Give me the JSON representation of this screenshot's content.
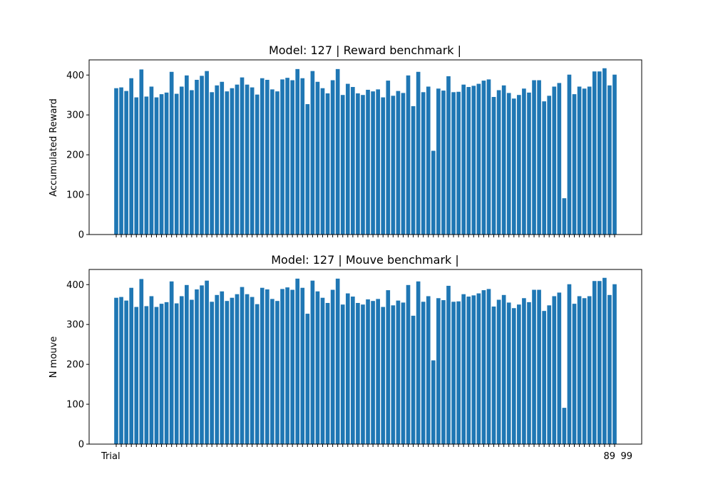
{
  "chart_data": [
    {
      "type": "bar",
      "title": "Model: 127 | Reward benchmark |",
      "xlabel": "",
      "ylabel": "Accumulated Reward",
      "ylim": [
        0,
        438
      ],
      "yticks": [
        0,
        100,
        200,
        300,
        400
      ],
      "grid": false,
      "color": "#1f77b4",
      "values": [
        367,
        369,
        360,
        392,
        344,
        414,
        346,
        371,
        344,
        352,
        356,
        408,
        353,
        371,
        399,
        362,
        388,
        398,
        410,
        357,
        374,
        383,
        359,
        367,
        376,
        394,
        376,
        369,
        351,
        392,
        388,
        364,
        359,
        389,
        393,
        387,
        415,
        392,
        327,
        410,
        383,
        367,
        354,
        387,
        415,
        350,
        378,
        370,
        354,
        350,
        363,
        359,
        364,
        344,
        386,
        348,
        360,
        355,
        399,
        322,
        408,
        357,
        371,
        210,
        366,
        361,
        397,
        357,
        358,
        376,
        370,
        373,
        378,
        386,
        389,
        345,
        362,
        374,
        355,
        341,
        350,
        366,
        356,
        387,
        387,
        334,
        348,
        371,
        380,
        91,
        401,
        352,
        371,
        366,
        371,
        409,
        409,
        417,
        374,
        401
      ]
    },
    {
      "type": "bar",
      "title": "Model: 127 | Mouve benchmark |",
      "xlabel": "",
      "ylabel": "N mouve",
      "ylim": [
        0,
        438
      ],
      "yticks": [
        0,
        100,
        200,
        300,
        400
      ],
      "grid": false,
      "color": "#1f77b4",
      "x_tick_labels_shown": [
        "Trial",
        "89",
        "99"
      ],
      "values": [
        367,
        369,
        360,
        392,
        344,
        414,
        346,
        371,
        344,
        352,
        356,
        408,
        353,
        371,
        399,
        362,
        388,
        398,
        410,
        357,
        374,
        383,
        359,
        367,
        376,
        394,
        376,
        369,
        351,
        392,
        388,
        364,
        359,
        389,
        393,
        387,
        415,
        392,
        327,
        410,
        383,
        367,
        354,
        387,
        415,
        350,
        378,
        370,
        354,
        350,
        363,
        359,
        364,
        344,
        386,
        348,
        360,
        355,
        399,
        322,
        408,
        357,
        371,
        210,
        366,
        361,
        397,
        357,
        358,
        376,
        370,
        373,
        378,
        386,
        389,
        345,
        362,
        374,
        355,
        341,
        350,
        366,
        356,
        387,
        387,
        334,
        348,
        371,
        380,
        91,
        401,
        352,
        371,
        366,
        371,
        409,
        409,
        417,
        374,
        401
      ]
    }
  ]
}
